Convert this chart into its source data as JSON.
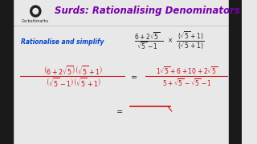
{
  "bg_color": "#e8e8e8",
  "title": "Surds: Rationalising Denominators",
  "title_color": "#7700aa",
  "title_fontsize": 8.5,
  "rationalise_text": "Rationalise and simplify",
  "rationalise_color": "#0044cc",
  "rationalise_fontsize": 5.5,
  "math_color": "#cc1111",
  "black_color": "#222222",
  "logo_color": "#222222",
  "bar_color": "#1a1a1a"
}
